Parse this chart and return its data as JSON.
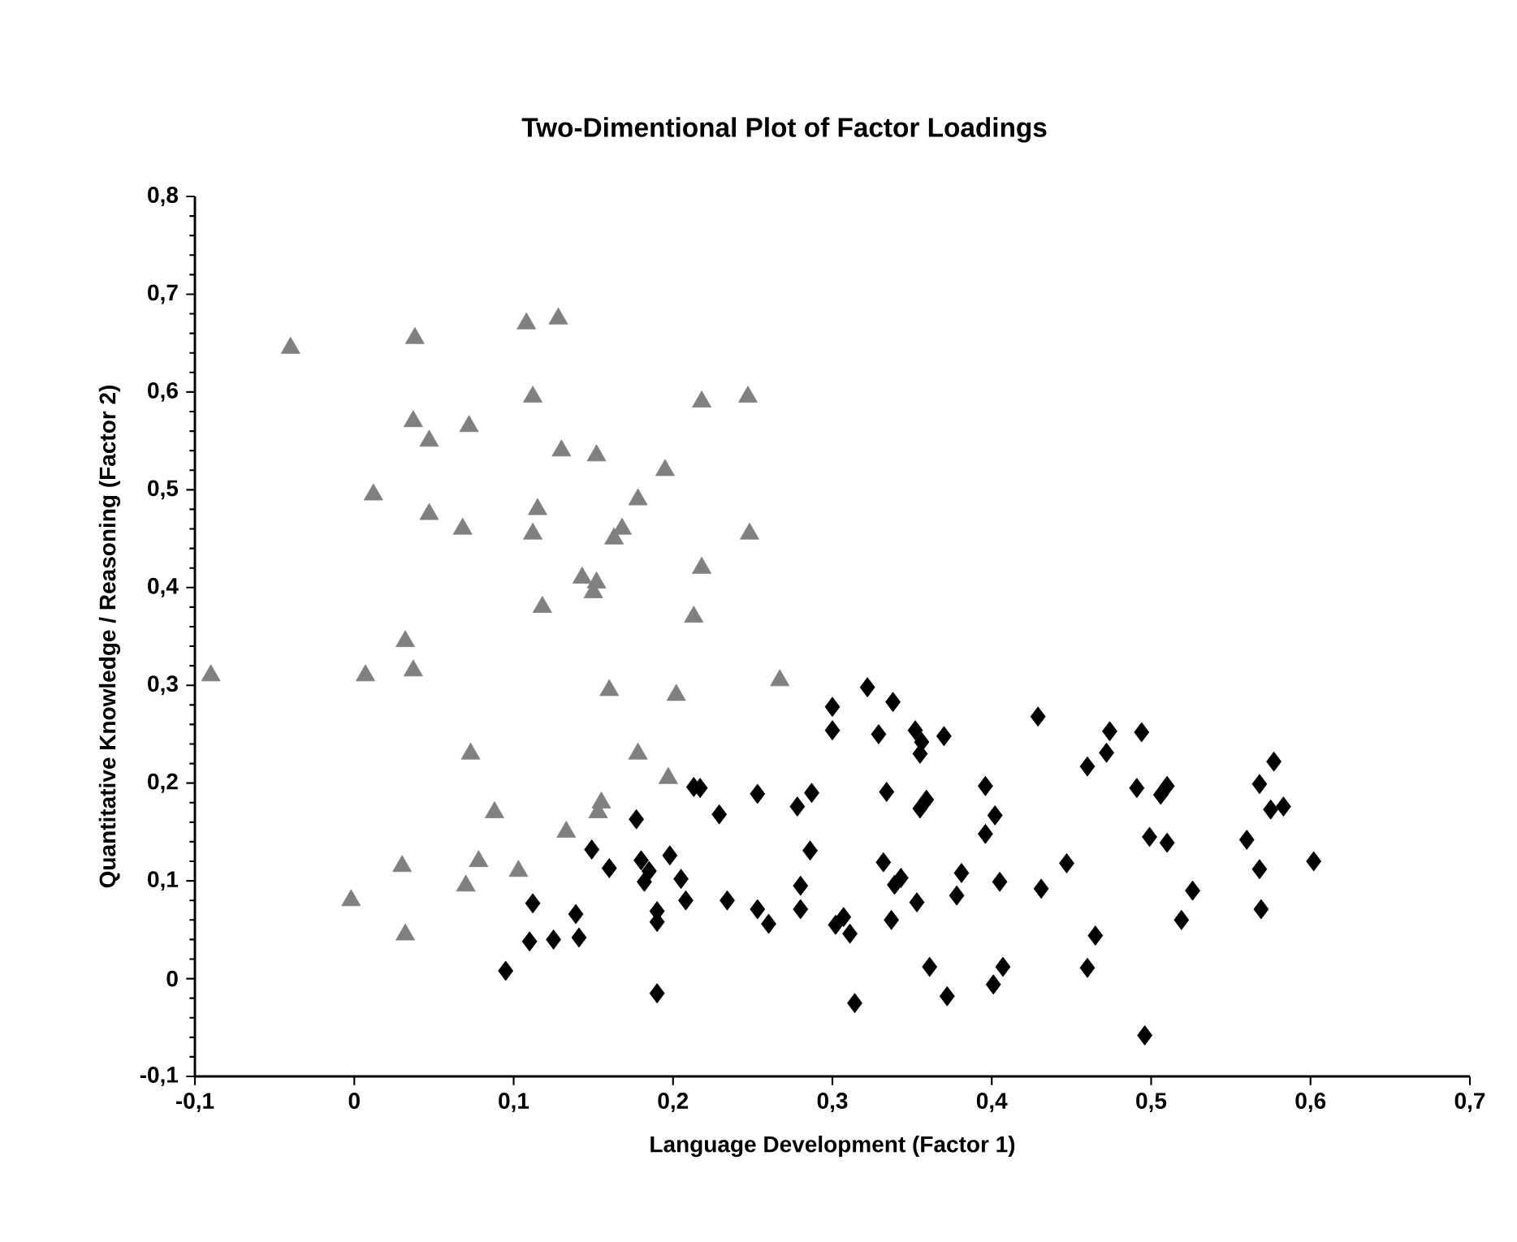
{
  "chart_data": {
    "type": "scatter",
    "title": "Two-Dimentional Plot of Factor Loadings",
    "xlabel": "Language Development (Factor 1)",
    "ylabel": "Quantitative Knowledge / Reasoning (Factor 2)",
    "xlim": [
      -0.1,
      0.7
    ],
    "ylim": [
      -0.1,
      0.8
    ],
    "xticks": [
      {
        "value": -0.1,
        "label": "-0,1"
      },
      {
        "value": 0,
        "label": "0"
      },
      {
        "value": 0.1,
        "label": "0,1"
      },
      {
        "value": 0.2,
        "label": "0,2"
      },
      {
        "value": 0.3,
        "label": "0,3"
      },
      {
        "value": 0.4,
        "label": "0,4"
      },
      {
        "value": 0.5,
        "label": "0,5"
      },
      {
        "value": 0.6,
        "label": "0,6"
      },
      {
        "value": 0.7,
        "label": "0,7"
      }
    ],
    "yticks": [
      {
        "value": -0.1,
        "label": "-0,1"
      },
      {
        "value": 0,
        "label": "0"
      },
      {
        "value": 0.1,
        "label": "0,1"
      },
      {
        "value": 0.2,
        "label": "0,2"
      },
      {
        "value": 0.3,
        "label": "0,3"
      },
      {
        "value": 0.4,
        "label": "0,4"
      },
      {
        "value": 0.5,
        "label": "0,5"
      },
      {
        "value": 0.6,
        "label": "0,6"
      },
      {
        "value": 0.7,
        "label": "0,7"
      },
      {
        "value": 0.8,
        "label": "0,8"
      }
    ],
    "grid": false,
    "series": [
      {
        "color": "#808080",
        "marker": "triangle",
        "x": [
          -0.09,
          -0.04,
          0.038,
          0.108,
          0.128,
          0.037,
          0.047,
          0.072,
          0.112,
          0.13,
          0.152,
          0.218,
          0.247,
          0.012,
          0.047,
          0.068,
          0.112,
          0.115,
          0.178,
          0.195,
          0.163,
          0.168,
          0.248,
          0.143,
          0.152,
          0.15,
          0.118,
          0.218,
          0.213,
          0.032,
          0.037,
          0.007,
          0.16,
          0.202,
          0.267,
          0.073,
          0.178,
          0.197,
          0.155,
          0.153,
          0.088,
          0.133,
          0.078,
          0.03,
          0.103,
          0.07,
          -0.002,
          0.032
        ],
        "values": [
          0.31,
          0.645,
          0.655,
          0.67,
          0.675,
          0.57,
          0.55,
          0.565,
          0.595,
          0.54,
          0.535,
          0.59,
          0.595,
          0.495,
          0.475,
          0.46,
          0.455,
          0.48,
          0.49,
          0.52,
          0.45,
          0.46,
          0.455,
          0.41,
          0.405,
          0.395,
          0.38,
          0.42,
          0.37,
          0.345,
          0.315,
          0.31,
          0.295,
          0.29,
          0.305,
          0.23,
          0.23,
          0.205,
          0.18,
          0.17,
          0.17,
          0.15,
          0.12,
          0.115,
          0.11,
          0.095,
          0.08,
          0.045
        ]
      },
      {
        "color": "#000000",
        "marker": "diamond",
        "x": [
          0.177,
          0.149,
          0.16,
          0.18,
          0.198,
          0.185,
          0.205,
          0.182,
          0.208,
          0.19,
          0.19,
          0.112,
          0.139,
          0.11,
          0.125,
          0.141,
          0.095,
          0.19,
          0.213,
          0.322,
          0.338,
          0.3,
          0.3,
          0.329,
          0.352,
          0.37,
          0.356,
          0.355,
          0.429,
          0.217,
          0.253,
          0.287,
          0.278,
          0.334,
          0.359,
          0.355,
          0.396,
          0.402,
          0.396,
          0.229,
          0.286,
          0.332,
          0.343,
          0.339,
          0.353,
          0.337,
          0.381,
          0.378,
          0.405,
          0.431,
          0.447,
          0.28,
          0.28,
          0.253,
          0.26,
          0.234,
          0.307,
          0.311,
          0.302,
          0.361,
          0.372,
          0.407,
          0.401,
          0.314,
          0.474,
          0.494,
          0.472,
          0.46,
          0.491,
          0.51,
          0.506,
          0.499,
          0.51,
          0.526,
          0.519,
          0.465,
          0.46,
          0.496,
          0.577,
          0.568,
          0.575,
          0.583,
          0.56,
          0.568,
          0.602,
          0.569
        ],
        "values": [
          0.163,
          0.132,
          0.113,
          0.121,
          0.126,
          0.11,
          0.102,
          0.099,
          0.08,
          0.069,
          0.058,
          0.077,
          0.066,
          0.038,
          0.04,
          0.042,
          0.008,
          -0.015,
          0.196,
          0.298,
          0.283,
          0.278,
          0.254,
          0.25,
          0.254,
          0.248,
          0.242,
          0.23,
          0.268,
          0.195,
          0.189,
          0.19,
          0.176,
          0.191,
          0.183,
          0.174,
          0.197,
          0.167,
          0.148,
          0.168,
          0.131,
          0.119,
          0.103,
          0.096,
          0.078,
          0.06,
          0.108,
          0.085,
          0.099,
          0.092,
          0.118,
          0.095,
          0.071,
          0.071,
          0.056,
          0.08,
          0.063,
          0.046,
          0.055,
          0.012,
          -0.018,
          0.012,
          -0.006,
          -0.025,
          0.253,
          0.252,
          0.231,
          0.217,
          0.195,
          0.197,
          0.188,
          0.145,
          0.139,
          0.09,
          0.06,
          0.044,
          0.011,
          -0.058,
          0.222,
          0.199,
          0.173,
          0.176,
          0.142,
          0.112,
          0.12,
          0.071
        ]
      }
    ]
  }
}
